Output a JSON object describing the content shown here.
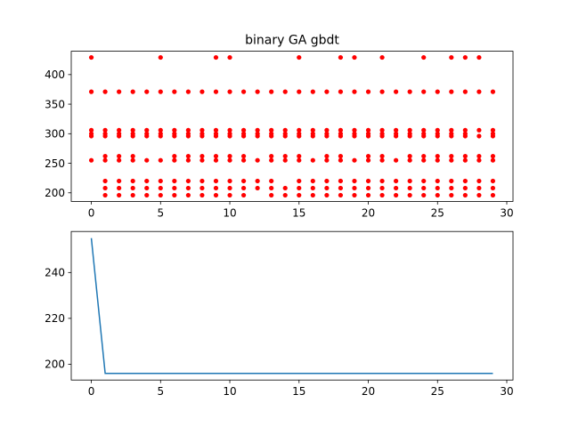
{
  "chart_data": [
    {
      "type": "scatter",
      "title": "binary GA gbdt",
      "xlabel": "",
      "ylabel": "",
      "xlim": [
        -1.45,
        30.45
      ],
      "ylim": [
        185.5,
        439.5
      ],
      "xticks": [
        0,
        5,
        10,
        15,
        20,
        25,
        30
      ],
      "yticks": [
        200,
        250,
        300,
        350,
        400
      ],
      "color": "#ff0000",
      "grid": false,
      "points": [
        [
          0,
          429
        ],
        [
          0,
          371
        ],
        [
          0,
          306
        ],
        [
          0,
          300
        ],
        [
          0,
          296
        ],
        [
          0,
          255
        ],
        [
          1,
          371
        ],
        [
          1,
          306
        ],
        [
          1,
          300
        ],
        [
          1,
          296
        ],
        [
          1,
          262
        ],
        [
          1,
          255
        ],
        [
          1,
          220
        ],
        [
          1,
          208
        ],
        [
          1,
          196
        ],
        [
          2,
          371
        ],
        [
          2,
          306
        ],
        [
          2,
          300
        ],
        [
          2,
          296
        ],
        [
          2,
          262
        ],
        [
          2,
          255
        ],
        [
          2,
          220
        ],
        [
          2,
          208
        ],
        [
          2,
          196
        ],
        [
          3,
          371
        ],
        [
          3,
          306
        ],
        [
          3,
          300
        ],
        [
          3,
          296
        ],
        [
          3,
          262
        ],
        [
          3,
          255
        ],
        [
          3,
          220
        ],
        [
          3,
          208
        ],
        [
          3,
          196
        ],
        [
          4,
          371
        ],
        [
          4,
          306
        ],
        [
          4,
          300
        ],
        [
          4,
          296
        ],
        [
          4,
          255
        ],
        [
          4,
          220
        ],
        [
          4,
          208
        ],
        [
          4,
          196
        ],
        [
          5,
          429
        ],
        [
          5,
          371
        ],
        [
          5,
          306
        ],
        [
          5,
          300
        ],
        [
          5,
          296
        ],
        [
          5,
          255
        ],
        [
          5,
          220
        ],
        [
          5,
          208
        ],
        [
          5,
          196
        ],
        [
          6,
          371
        ],
        [
          6,
          306
        ],
        [
          6,
          300
        ],
        [
          6,
          296
        ],
        [
          6,
          262
        ],
        [
          6,
          255
        ],
        [
          6,
          220
        ],
        [
          6,
          208
        ],
        [
          6,
          196
        ],
        [
          7,
          371
        ],
        [
          7,
          306
        ],
        [
          7,
          300
        ],
        [
          7,
          296
        ],
        [
          7,
          262
        ],
        [
          7,
          255
        ],
        [
          7,
          220
        ],
        [
          7,
          208
        ],
        [
          7,
          196
        ],
        [
          8,
          371
        ],
        [
          8,
          306
        ],
        [
          8,
          300
        ],
        [
          8,
          296
        ],
        [
          8,
          262
        ],
        [
          8,
          255
        ],
        [
          8,
          220
        ],
        [
          8,
          208
        ],
        [
          8,
          196
        ],
        [
          9,
          429
        ],
        [
          9,
          371
        ],
        [
          9,
          306
        ],
        [
          9,
          300
        ],
        [
          9,
          296
        ],
        [
          9,
          262
        ],
        [
          9,
          255
        ],
        [
          9,
          220
        ],
        [
          9,
          208
        ],
        [
          9,
          196
        ],
        [
          10,
          429
        ],
        [
          10,
          371
        ],
        [
          10,
          306
        ],
        [
          10,
          300
        ],
        [
          10,
          296
        ],
        [
          10,
          262
        ],
        [
          10,
          255
        ],
        [
          10,
          220
        ],
        [
          10,
          208
        ],
        [
          10,
          196
        ],
        [
          11,
          371
        ],
        [
          11,
          306
        ],
        [
          11,
          300
        ],
        [
          11,
          296
        ],
        [
          11,
          262
        ],
        [
          11,
          255
        ],
        [
          11,
          220
        ],
        [
          11,
          208
        ],
        [
          11,
          196
        ],
        [
          12,
          371
        ],
        [
          12,
          306
        ],
        [
          12,
          300
        ],
        [
          12,
          296
        ],
        [
          12,
          255
        ],
        [
          12,
          220
        ],
        [
          12,
          208
        ],
        [
          13,
          371
        ],
        [
          13,
          306
        ],
        [
          13,
          300
        ],
        [
          13,
          296
        ],
        [
          13,
          262
        ],
        [
          13,
          255
        ],
        [
          13,
          220
        ],
        [
          13,
          208
        ],
        [
          13,
          196
        ],
        [
          14,
          371
        ],
        [
          14,
          306
        ],
        [
          14,
          300
        ],
        [
          14,
          296
        ],
        [
          14,
          262
        ],
        [
          14,
          255
        ],
        [
          14,
          208
        ],
        [
          14,
          196
        ],
        [
          15,
          429
        ],
        [
          15,
          371
        ],
        [
          15,
          306
        ],
        [
          15,
          300
        ],
        [
          15,
          296
        ],
        [
          15,
          262
        ],
        [
          15,
          255
        ],
        [
          15,
          220
        ],
        [
          15,
          208
        ],
        [
          15,
          196
        ],
        [
          16,
          371
        ],
        [
          16,
          306
        ],
        [
          16,
          300
        ],
        [
          16,
          296
        ],
        [
          16,
          255
        ],
        [
          16,
          220
        ],
        [
          16,
          208
        ],
        [
          16,
          196
        ],
        [
          17,
          371
        ],
        [
          17,
          306
        ],
        [
          17,
          300
        ],
        [
          17,
          296
        ],
        [
          17,
          262
        ],
        [
          17,
          255
        ],
        [
          17,
          220
        ],
        [
          17,
          208
        ],
        [
          17,
          196
        ],
        [
          18,
          429
        ],
        [
          18,
          371
        ],
        [
          18,
          306
        ],
        [
          18,
          300
        ],
        [
          18,
          296
        ],
        [
          18,
          262
        ],
        [
          18,
          255
        ],
        [
          18,
          220
        ],
        [
          18,
          208
        ],
        [
          18,
          196
        ],
        [
          19,
          429
        ],
        [
          19,
          371
        ],
        [
          19,
          306
        ],
        [
          19,
          300
        ],
        [
          19,
          296
        ],
        [
          19,
          255
        ],
        [
          19,
          220
        ],
        [
          19,
          208
        ],
        [
          19,
          196
        ],
        [
          20,
          371
        ],
        [
          20,
          306
        ],
        [
          20,
          300
        ],
        [
          20,
          296
        ],
        [
          20,
          262
        ],
        [
          20,
          255
        ],
        [
          20,
          220
        ],
        [
          20,
          208
        ],
        [
          20,
          196
        ],
        [
          21,
          429
        ],
        [
          21,
          371
        ],
        [
          21,
          306
        ],
        [
          21,
          300
        ],
        [
          21,
          296
        ],
        [
          21,
          262
        ],
        [
          21,
          255
        ],
        [
          21,
          220
        ],
        [
          21,
          208
        ],
        [
          21,
          196
        ],
        [
          22,
          371
        ],
        [
          22,
          306
        ],
        [
          22,
          300
        ],
        [
          22,
          296
        ],
        [
          22,
          255
        ],
        [
          22,
          220
        ],
        [
          22,
          208
        ],
        [
          22,
          196
        ],
        [
          23,
          371
        ],
        [
          23,
          306
        ],
        [
          23,
          300
        ],
        [
          23,
          296
        ],
        [
          23,
          262
        ],
        [
          23,
          255
        ],
        [
          23,
          220
        ],
        [
          23,
          208
        ],
        [
          23,
          196
        ],
        [
          24,
          429
        ],
        [
          24,
          371
        ],
        [
          24,
          306
        ],
        [
          24,
          300
        ],
        [
          24,
          296
        ],
        [
          24,
          262
        ],
        [
          24,
          255
        ],
        [
          24,
          220
        ],
        [
          24,
          208
        ],
        [
          24,
          196
        ],
        [
          25,
          371
        ],
        [
          25,
          306
        ],
        [
          25,
          300
        ],
        [
          25,
          296
        ],
        [
          25,
          262
        ],
        [
          25,
          255
        ],
        [
          25,
          220
        ],
        [
          25,
          208
        ],
        [
          25,
          196
        ],
        [
          26,
          429
        ],
        [
          26,
          371
        ],
        [
          26,
          306
        ],
        [
          26,
          300
        ],
        [
          26,
          296
        ],
        [
          26,
          262
        ],
        [
          26,
          255
        ],
        [
          26,
          220
        ],
        [
          26,
          208
        ],
        [
          26,
          196
        ],
        [
          27,
          429
        ],
        [
          27,
          371
        ],
        [
          27,
          306
        ],
        [
          27,
          300
        ],
        [
          27,
          296
        ],
        [
          27,
          262
        ],
        [
          27,
          255
        ],
        [
          27,
          220
        ],
        [
          27,
          208
        ],
        [
          27,
          196
        ],
        [
          28,
          429
        ],
        [
          28,
          371
        ],
        [
          28,
          306
        ],
        [
          28,
          296
        ],
        [
          28,
          262
        ],
        [
          28,
          255
        ],
        [
          28,
          220
        ],
        [
          28,
          208
        ],
        [
          28,
          196
        ],
        [
          29,
          371
        ],
        [
          29,
          306
        ],
        [
          29,
          300
        ],
        [
          29,
          296
        ],
        [
          29,
          262
        ],
        [
          29,
          255
        ],
        [
          29,
          220
        ],
        [
          29,
          208
        ],
        [
          29,
          196
        ]
      ]
    },
    {
      "type": "line",
      "title": "",
      "xlabel": "",
      "ylabel": "",
      "xlim": [
        -1.45,
        30.45
      ],
      "ylim": [
        193.1,
        257.9
      ],
      "xticks": [
        0,
        5,
        10,
        15,
        20,
        25,
        30
      ],
      "yticks": [
        200,
        220,
        240
      ],
      "color": "#1f77b4",
      "grid": false,
      "x": [
        0,
        1,
        2,
        3,
        4,
        5,
        6,
        7,
        8,
        9,
        10,
        11,
        12,
        13,
        14,
        15,
        16,
        17,
        18,
        19,
        20,
        21,
        22,
        23,
        24,
        25,
        26,
        27,
        28,
        29
      ],
      "y": [
        255,
        196,
        196,
        196,
        196,
        196,
        196,
        196,
        196,
        196,
        196,
        196,
        196,
        196,
        196,
        196,
        196,
        196,
        196,
        196,
        196,
        196,
        196,
        196,
        196,
        196,
        196,
        196,
        196,
        196
      ]
    }
  ]
}
